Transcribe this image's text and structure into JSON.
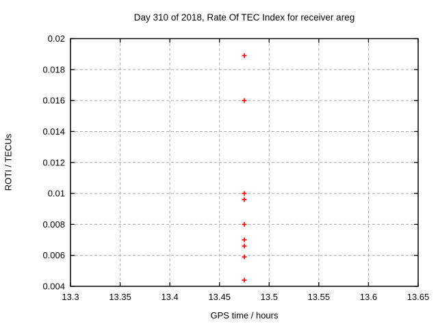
{
  "chart_data": {
    "type": "scatter",
    "title": "Day 310 of 2018, Rate Of TEC Index for receiver areg",
    "xlabel": "GPS time / hours",
    "ylabel": "ROTI / TECUs",
    "xlim": [
      13.3,
      13.65
    ],
    "ylim": [
      0.004,
      0.02
    ],
    "xticks": [
      13.3,
      13.35,
      13.4,
      13.45,
      13.5,
      13.55,
      13.6,
      13.65
    ],
    "xtick_labels": [
      "13.3",
      "13.35",
      "13.4",
      "13.45",
      "13.5",
      "13.55",
      "13.6",
      "13.65"
    ],
    "yticks": [
      0.004,
      0.006,
      0.008,
      0.01,
      0.012,
      0.014,
      0.016,
      0.018,
      0.02
    ],
    "ytick_labels": [
      "0.004",
      "0.006",
      "0.008",
      "0.01",
      "0.012",
      "0.014",
      "0.016",
      "0.018",
      "0.02"
    ],
    "grid": true,
    "legend": "none",
    "series": [
      {
        "name": "ROTI",
        "marker": "plus",
        "color": "#ff0000",
        "points": [
          {
            "x": 13.475,
            "y": 0.0189
          },
          {
            "x": 13.475,
            "y": 0.016
          },
          {
            "x": 13.475,
            "y": 0.01
          },
          {
            "x": 13.475,
            "y": 0.0096
          },
          {
            "x": 13.475,
            "y": 0.008
          },
          {
            "x": 13.475,
            "y": 0.007
          },
          {
            "x": 13.475,
            "y": 0.0066
          },
          {
            "x": 13.475,
            "y": 0.0059
          },
          {
            "x": 13.475,
            "y": 0.0044
          }
        ]
      }
    ],
    "colors": {
      "background": "#ffffff",
      "axis": "#000000",
      "grid": "#a8a8a8",
      "text": "#000000",
      "marker": "#ff0000"
    }
  }
}
